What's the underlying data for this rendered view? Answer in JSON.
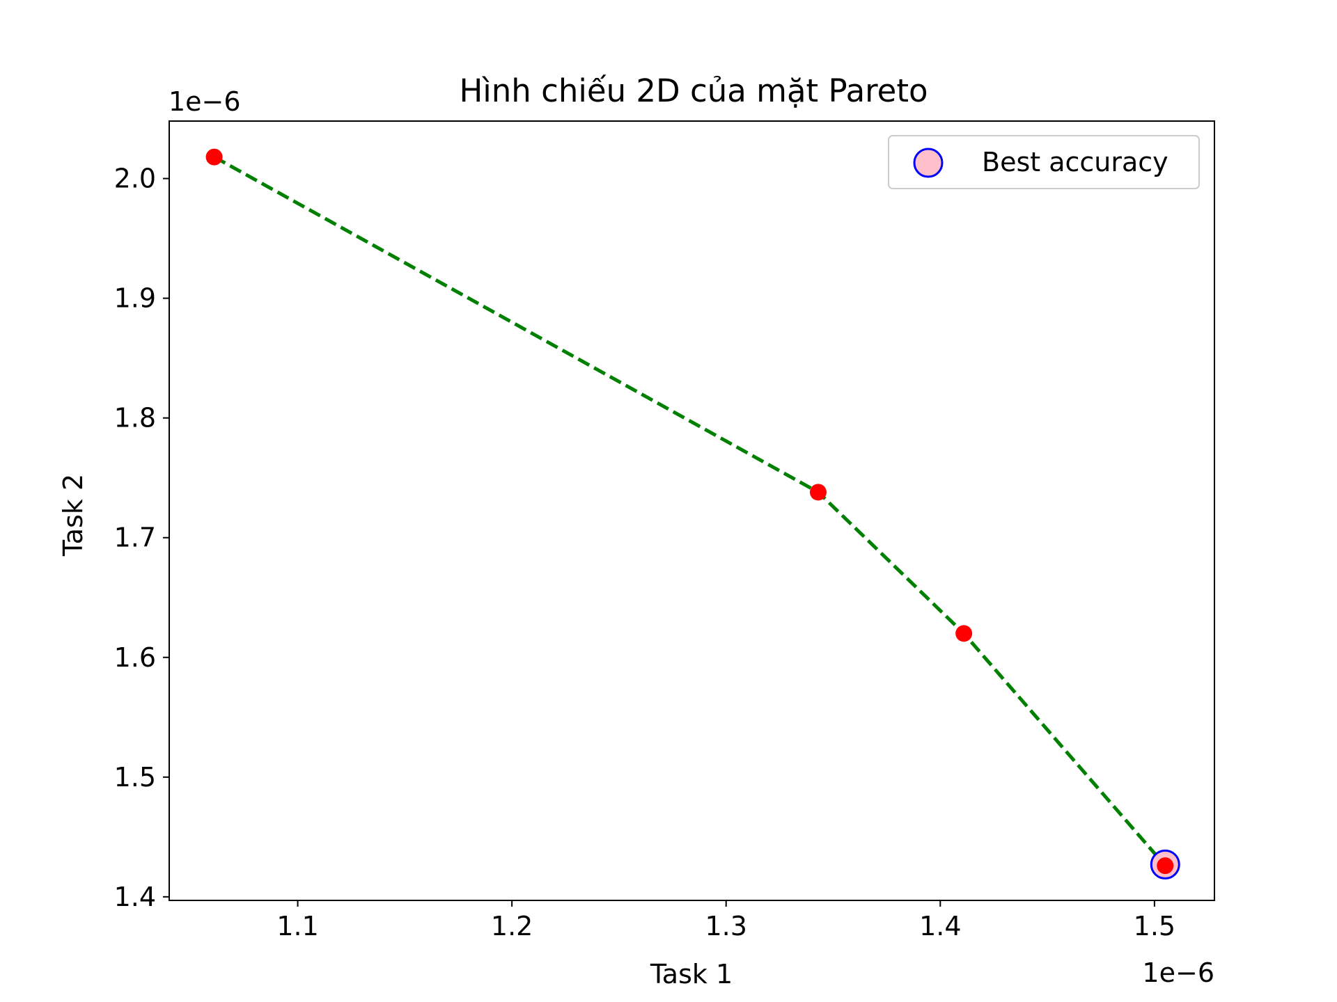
{
  "chart_data": {
    "type": "scatter",
    "title": "Hình chiếu 2D của mặt Pareto",
    "xlabel": "Task 1",
    "ylabel": "Task 2",
    "x_offset_label": "1e−6",
    "y_offset_label": "1e−6",
    "xlim": [
      1.04,
      1.528
    ],
    "ylim": [
      1.397,
      2.048
    ],
    "x_ticks": [
      1.1,
      1.2,
      1.3,
      1.4,
      1.5
    ],
    "x_tick_labels": [
      "1.1",
      "1.2",
      "1.3",
      "1.4",
      "1.5"
    ],
    "y_ticks": [
      1.4,
      1.5,
      1.6,
      1.7,
      1.8,
      1.9,
      2.0
    ],
    "y_tick_labels": [
      "1.4",
      "1.5",
      "1.6",
      "1.7",
      "1.8",
      "1.9",
      "2.0"
    ],
    "grid": false,
    "legend_position": "top-right",
    "series": [
      {
        "kind": "line",
        "style": "dashed",
        "color": "#008000",
        "points": [
          [
            1.061,
            2.018
          ],
          [
            1.343,
            1.738
          ],
          [
            1.411,
            1.62
          ],
          [
            1.505,
            1.426
          ]
        ]
      },
      {
        "kind": "scatter",
        "color": "#ff0000",
        "points": [
          [
            1.061,
            2.018
          ],
          [
            1.343,
            1.738
          ],
          [
            1.411,
            1.62
          ],
          [
            1.505,
            1.426
          ]
        ]
      },
      {
        "kind": "scatter",
        "name": "Best accuracy",
        "face_color": "#ffc0cb",
        "edge_color": "#0000ff",
        "points": [
          [
            1.505,
            1.427
          ]
        ]
      }
    ]
  }
}
